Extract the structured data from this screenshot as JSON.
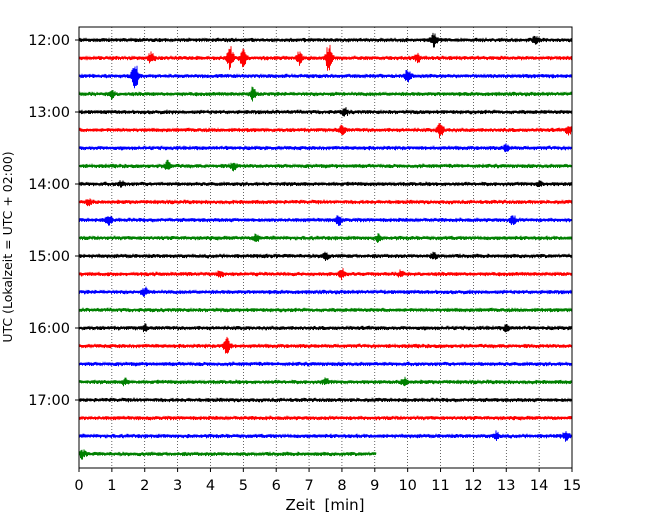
{
  "chart_data": {
    "type": "line",
    "title": "",
    "xlabel": "Zeit  [min]",
    "ylabel": "UTC (Lokalzeit = UTC + 02:00)",
    "xlim": [
      0,
      15
    ],
    "x_ticks": [
      "0",
      "1",
      "2",
      "3",
      "4",
      "5",
      "6",
      "7",
      "8",
      "9",
      "10",
      "11",
      "12",
      "13",
      "14",
      "15"
    ],
    "y_tick_labels": [
      "12:00",
      "13:00",
      "14:00",
      "15:00",
      "16:00",
      "17:00"
    ],
    "grid": "vertical dotted",
    "legend": "none",
    "trace_colors": [
      "#000000",
      "#ff0000",
      "#0000ff",
      "#008000"
    ],
    "rows": [
      {
        "start": "12:00",
        "color": "#000000",
        "end_min": 15,
        "events": [
          {
            "t": 10.8,
            "a": 2.2
          },
          {
            "t": 13.9,
            "a": 1.2
          }
        ]
      },
      {
        "start": "12:15",
        "color": "#ff0000",
        "end_min": 15,
        "events": [
          {
            "t": 2.2,
            "a": 2.0
          },
          {
            "t": 4.6,
            "a": 3.5
          },
          {
            "t": 5.0,
            "a": 3.0
          },
          {
            "t": 6.7,
            "a": 2.5
          },
          {
            "t": 7.6,
            "a": 4.5
          },
          {
            "t": 10.3,
            "a": 1.3
          }
        ]
      },
      {
        "start": "12:30",
        "color": "#0000ff",
        "end_min": 15,
        "events": [
          {
            "t": 1.7,
            "a": 5.0
          },
          {
            "t": 10.0,
            "a": 1.8
          }
        ]
      },
      {
        "start": "12:45",
        "color": "#008000",
        "end_min": 15,
        "events": [
          {
            "t": 1.0,
            "a": 1.3
          },
          {
            "t": 5.3,
            "a": 2.3
          }
        ]
      },
      {
        "start": "13:00",
        "color": "#000000",
        "end_min": 15,
        "events": [
          {
            "t": 8.1,
            "a": 1.2
          }
        ]
      },
      {
        "start": "13:15",
        "color": "#ff0000",
        "end_min": 15,
        "events": [
          {
            "t": 8.0,
            "a": 1.6
          },
          {
            "t": 11.0,
            "a": 2.5
          },
          {
            "t": 14.9,
            "a": 1.2
          }
        ]
      },
      {
        "start": "13:30",
        "color": "#0000ff",
        "end_min": 15,
        "events": [
          {
            "t": 13.0,
            "a": 1.0
          }
        ]
      },
      {
        "start": "13:45",
        "color": "#008000",
        "end_min": 15,
        "events": [
          {
            "t": 2.7,
            "a": 1.5
          },
          {
            "t": 4.7,
            "a": 1.2
          }
        ]
      },
      {
        "start": "14:00",
        "color": "#000000",
        "end_min": 15,
        "events": [
          {
            "t": 1.3,
            "a": 1.0
          },
          {
            "t": 14.0,
            "a": 1.0
          }
        ]
      },
      {
        "start": "14:15",
        "color": "#ff0000",
        "end_min": 15,
        "events": [
          {
            "t": 0.3,
            "a": 1.0
          }
        ]
      },
      {
        "start": "14:30",
        "color": "#0000ff",
        "end_min": 15,
        "events": [
          {
            "t": 0.9,
            "a": 1.8
          },
          {
            "t": 7.9,
            "a": 1.5
          },
          {
            "t": 13.2,
            "a": 1.5
          }
        ]
      },
      {
        "start": "14:45",
        "color": "#008000",
        "end_min": 15,
        "events": [
          {
            "t": 5.4,
            "a": 1.2
          },
          {
            "t": 9.1,
            "a": 1.0
          }
        ]
      },
      {
        "start": "15:00",
        "color": "#000000",
        "end_min": 15,
        "events": [
          {
            "t": 7.5,
            "a": 1.2
          },
          {
            "t": 10.8,
            "a": 1.0
          }
        ]
      },
      {
        "start": "15:15",
        "color": "#ff0000",
        "end_min": 15,
        "events": [
          {
            "t": 4.3,
            "a": 1.0
          },
          {
            "t": 8.0,
            "a": 1.6
          },
          {
            "t": 9.8,
            "a": 1.0
          }
        ]
      },
      {
        "start": "15:30",
        "color": "#0000ff",
        "end_min": 15,
        "events": [
          {
            "t": 2.0,
            "a": 1.3
          }
        ]
      },
      {
        "start": "15:45",
        "color": "#008000",
        "end_min": 15,
        "events": []
      },
      {
        "start": "16:00",
        "color": "#000000",
        "end_min": 15,
        "events": [
          {
            "t": 2.0,
            "a": 1.0
          },
          {
            "t": 13.0,
            "a": 1.0
          }
        ]
      },
      {
        "start": "16:15",
        "color": "#ff0000",
        "end_min": 15,
        "events": [
          {
            "t": 4.5,
            "a": 3.5
          }
        ]
      },
      {
        "start": "16:30",
        "color": "#0000ff",
        "end_min": 15,
        "events": []
      },
      {
        "start": "16:45",
        "color": "#008000",
        "end_min": 15,
        "events": [
          {
            "t": 1.4,
            "a": 1.0
          },
          {
            "t": 7.5,
            "a": 1.0
          },
          {
            "t": 9.9,
            "a": 1.2
          }
        ]
      },
      {
        "start": "17:00",
        "color": "#000000",
        "end_min": 15,
        "events": []
      },
      {
        "start": "17:15",
        "color": "#ff0000",
        "end_min": 15,
        "events": []
      },
      {
        "start": "17:30",
        "color": "#0000ff",
        "end_min": 15,
        "events": [
          {
            "t": 12.7,
            "a": 1.2
          },
          {
            "t": 14.8,
            "a": 1.3
          }
        ]
      },
      {
        "start": "17:45",
        "color": "#008000",
        "end_min": 9.05,
        "events": [
          {
            "t": 0.1,
            "a": 1.3
          }
        ]
      }
    ]
  }
}
